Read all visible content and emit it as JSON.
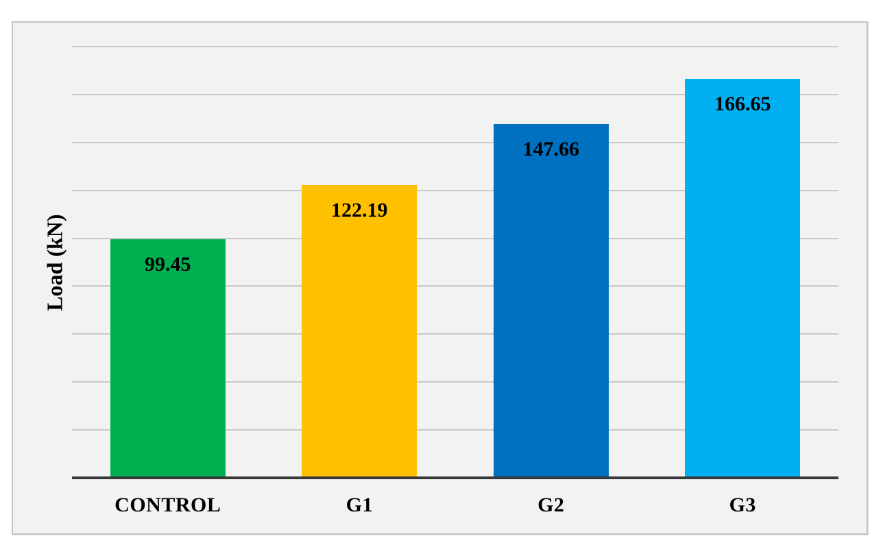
{
  "chart_data": {
    "type": "bar",
    "title": "",
    "xlabel": "",
    "ylabel": "Load (kN)",
    "categories": [
      "CONTROL",
      "G1",
      "G2",
      "G3"
    ],
    "values": [
      99.45,
      122.19,
      147.66,
      166.65
    ],
    "value_labels": [
      "99.45",
      "122.19",
      "147.66",
      "166.65"
    ],
    "bar_colors": [
      "#00B050",
      "#FFC000",
      "#0070C0",
      "#00B0F0"
    ],
    "ylim": [
      0,
      180
    ],
    "gridline_step": 20,
    "grid": true,
    "legend": false,
    "y_tick_labels_visible": false,
    "value_label_position": "inside-top"
  },
  "style": {
    "plot_background": "#F2F2F2",
    "frame_border_color": "#C3C3C3",
    "gridline_color": "#C9C9C9",
    "axis_line_color": "#383838",
    "text_color": "#000000"
  }
}
